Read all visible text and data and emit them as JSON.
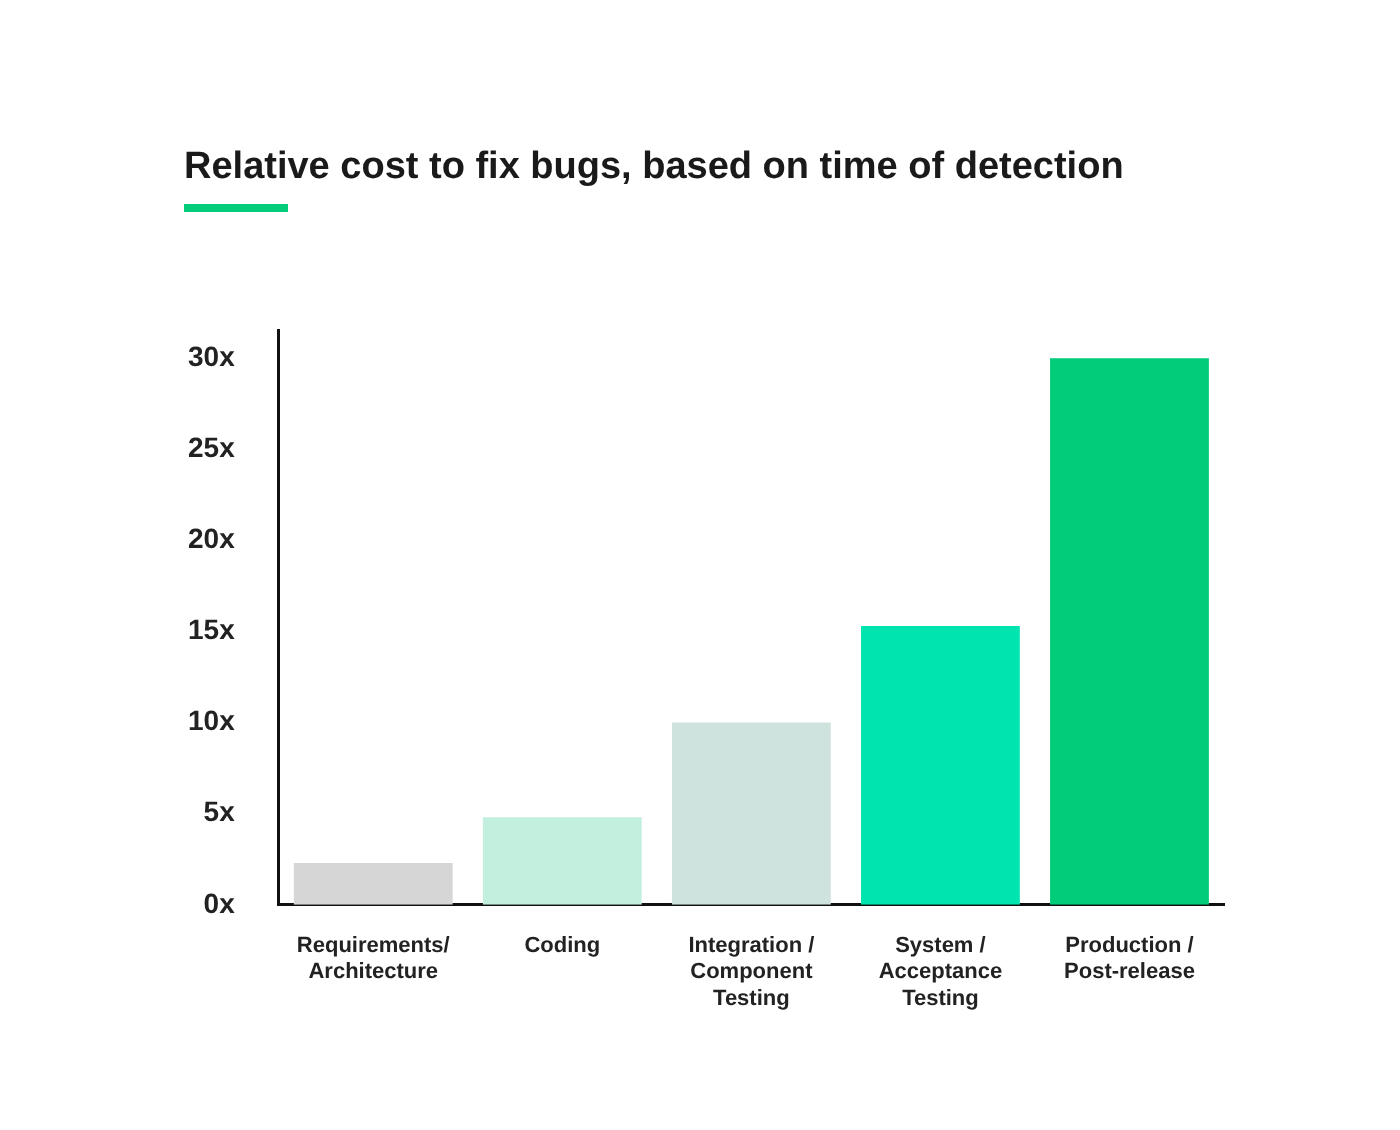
{
  "chart_data": {
    "type": "bar",
    "title": "Relative cost to fix bugs, based on time of detection",
    "categories": [
      "Requirements/\nArchitecture",
      "Coding",
      "Integration /\nComponent\nTesting",
      "System /\nAcceptance\nTesting",
      "Production /\nPost-release"
    ],
    "values": [
      2.3,
      4.8,
      10,
      15.3,
      30
    ],
    "colors": [
      "#d6d6d6",
      "#c3efdf",
      "#cfe3de",
      "#00e5b0",
      "#00cc7a"
    ],
    "ylim": [
      0,
      31.5
    ],
    "yticks": [
      {
        "value": 0,
        "label": "0x"
      },
      {
        "value": 5,
        "label": "5x"
      },
      {
        "value": 10,
        "label": "10x"
      },
      {
        "value": 15,
        "label": "15x"
      },
      {
        "value": 20,
        "label": "20x"
      },
      {
        "value": 25,
        "label": "25x"
      },
      {
        "value": 30,
        "label": "30x"
      }
    ],
    "grid": false,
    "legend": false
  }
}
